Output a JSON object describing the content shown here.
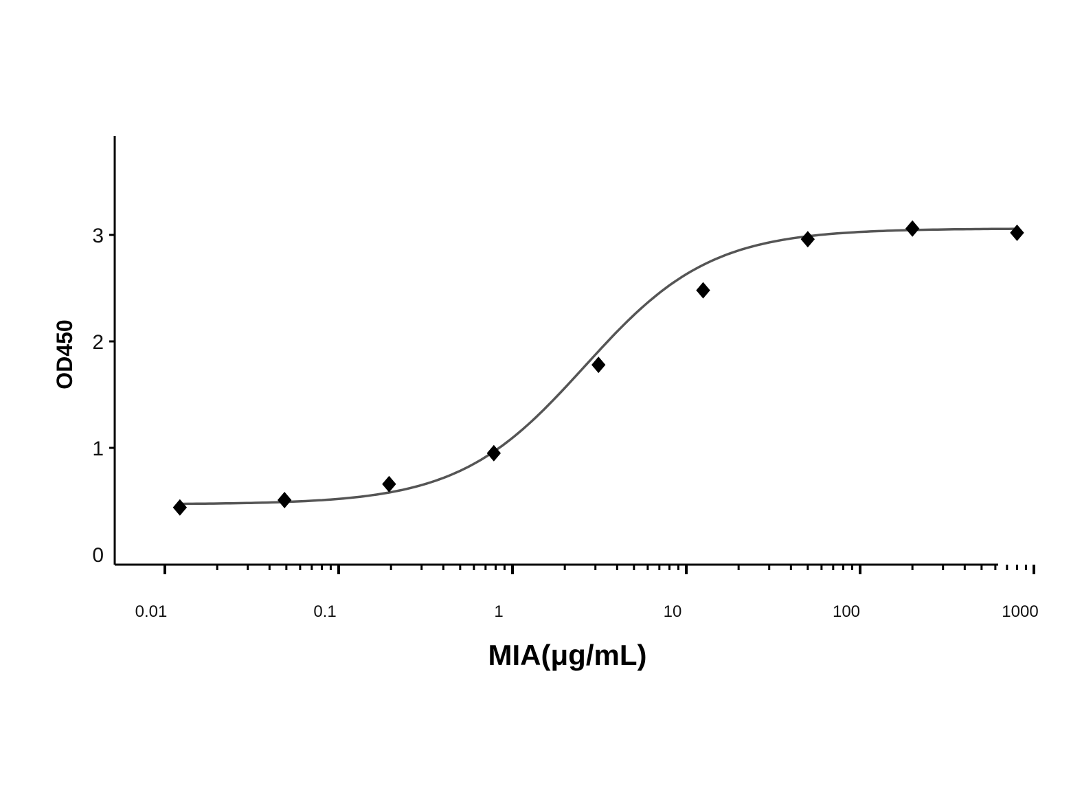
{
  "chart_data": {
    "type": "scatter",
    "xlabel": "MIA(μg/mL)",
    "ylabel": "OD450",
    "x_scale": "log",
    "xlim": [
      0.01,
      1000
    ],
    "ylim": [
      0,
      3.5
    ],
    "x_ticks": [
      {
        "value": 0.01,
        "label": "0.01"
      },
      {
        "value": 0.1,
        "label": "0.1"
      },
      {
        "value": 1,
        "label": "1"
      },
      {
        "value": 10,
        "label": "10"
      },
      {
        "value": 100,
        "label": "100"
      },
      {
        "value": 1000,
        "label": "1000"
      }
    ],
    "y_ticks": [
      {
        "value": 0,
        "label": "0"
      },
      {
        "value": 1,
        "label": "1"
      },
      {
        "value": 2,
        "label": "2"
      },
      {
        "value": 3,
        "label": "3"
      }
    ],
    "series": [
      {
        "points": [
          {
            "x": 0.0122,
            "y": 0.44
          },
          {
            "x": 0.0488,
            "y": 0.51
          },
          {
            "x": 0.195,
            "y": 0.66
          },
          {
            "x": 0.781,
            "y": 0.95
          },
          {
            "x": 3.125,
            "y": 1.78
          },
          {
            "x": 12.5,
            "y": 2.48
          },
          {
            "x": 50,
            "y": 2.96
          },
          {
            "x": 200,
            "y": 3.06
          },
          {
            "x": 800,
            "y": 3.02
          }
        ]
      }
    ],
    "fit_curve": {
      "model": "4PL",
      "bottom": 0.47,
      "top": 3.06,
      "ec50": 2.6,
      "hill": 1.2
    },
    "grid": false,
    "legend": "none",
    "colors": {
      "points": "#000000",
      "curve": "#555555",
      "axes": "#000000"
    }
  }
}
